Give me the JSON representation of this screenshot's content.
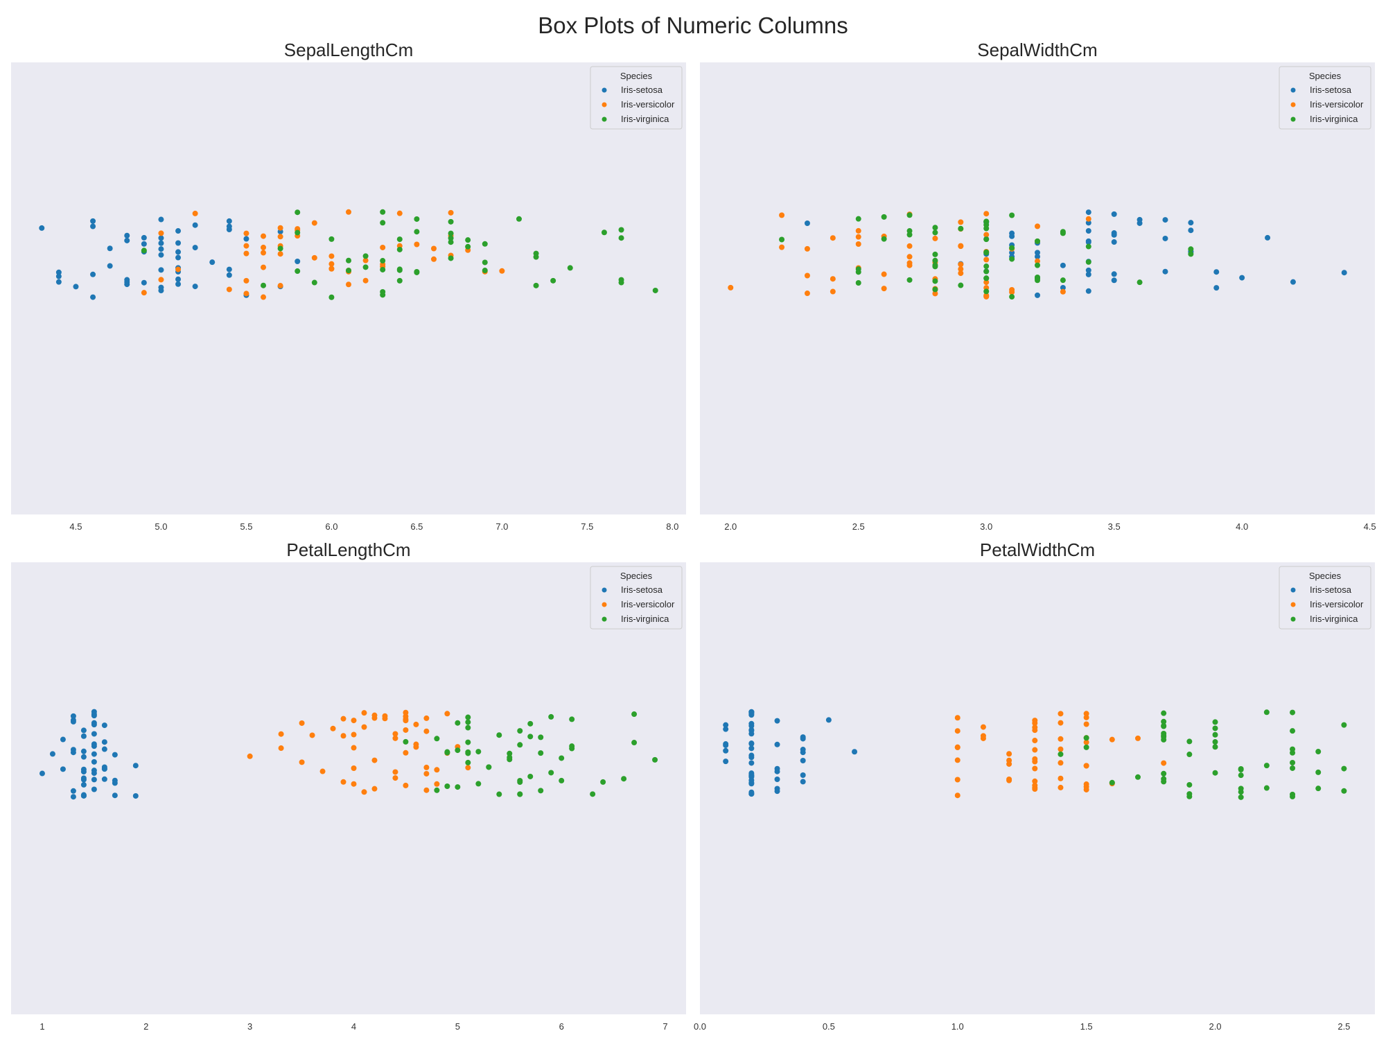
{
  "suptitle": "Box Plots of Numeric Columns",
  "colors": {
    "Iris-setosa": "#1f77b4",
    "Iris-versicolor": "#ff7f0e",
    "Iris-virginica": "#2ca02c",
    "axes_bg": "#eaeaf2"
  },
  "legend": {
    "title": "Species",
    "entries": [
      "Iris-setosa",
      "Iris-versicolor",
      "Iris-virginica"
    ],
    "placement": "top-right"
  },
  "chart_data": [
    {
      "type": "scatter",
      "title": "SepalLengthCm",
      "xlabel": "",
      "ylabel": "",
      "xlim": [
        4.12,
        8.08
      ],
      "xticks": [
        "4.5",
        "5.0",
        "5.5",
        "6.0",
        "6.5",
        "7.0",
        "7.5",
        "8.0"
      ],
      "grid": false,
      "series": [
        {
          "name": "Iris-setosa",
          "values": [
            5.1,
            4.9,
            4.7,
            4.6,
            5.0,
            5.4,
            4.6,
            5.0,
            4.4,
            4.9,
            5.4,
            4.8,
            4.8,
            4.3,
            5.8,
            5.7,
            5.4,
            5.1,
            5.7,
            5.1,
            5.4,
            5.1,
            4.6,
            5.1,
            4.8,
            5.0,
            5.0,
            5.2,
            5.2,
            4.7,
            4.8,
            5.4,
            5.2,
            5.5,
            4.9,
            5.0,
            5.5,
            4.9,
            4.4,
            5.1,
            5.0,
            4.5,
            4.4,
            5.0,
            5.1,
            4.8,
            5.1,
            4.6,
            5.3,
            5.0
          ]
        },
        {
          "name": "Iris-versicolor",
          "values": [
            7.0,
            6.4,
            6.9,
            5.5,
            6.5,
            5.7,
            6.3,
            4.9,
            6.6,
            5.2,
            5.0,
            5.9,
            6.0,
            6.1,
            5.6,
            6.7,
            5.6,
            5.8,
            6.2,
            5.6,
            5.9,
            6.1,
            6.3,
            6.1,
            6.4,
            6.6,
            6.8,
            6.7,
            6.0,
            5.7,
            5.5,
            5.5,
            5.8,
            6.0,
            5.4,
            6.0,
            6.7,
            6.3,
            5.6,
            5.5,
            5.5,
            6.1,
            5.8,
            5.0,
            5.6,
            5.7,
            5.7,
            6.2,
            5.1,
            5.7
          ]
        },
        {
          "name": "Iris-virginica",
          "values": [
            6.3,
            5.8,
            7.1,
            6.3,
            6.5,
            7.6,
            4.9,
            7.3,
            6.7,
            7.2,
            6.5,
            6.4,
            6.8,
            5.7,
            5.8,
            6.4,
            6.5,
            7.7,
            7.7,
            6.0,
            6.9,
            5.6,
            7.7,
            6.3,
            6.7,
            7.2,
            6.2,
            6.1,
            6.4,
            7.2,
            7.4,
            7.9,
            6.4,
            6.3,
            6.1,
            7.7,
            6.3,
            6.4,
            6.0,
            6.9,
            6.7,
            6.9,
            5.8,
            6.8,
            6.7,
            6.7,
            6.3,
            6.5,
            6.2,
            5.9
          ]
        }
      ]
    },
    {
      "type": "scatter",
      "title": "SepalWidthCm",
      "xlabel": "",
      "ylabel": "",
      "xlim": [
        1.88,
        4.52
      ],
      "xticks": [
        "2.0",
        "2.5",
        "3.0",
        "3.5",
        "4.0",
        "4.5"
      ],
      "grid": false,
      "series": [
        {
          "name": "Iris-setosa",
          "values": [
            3.5,
            3.0,
            3.2,
            3.1,
            3.6,
            3.9,
            3.4,
            3.4,
            2.9,
            3.1,
            3.7,
            3.4,
            3.0,
            3.0,
            4.0,
            4.4,
            3.9,
            3.5,
            3.8,
            3.8,
            3.4,
            3.7,
            3.6,
            3.3,
            3.4,
            3.0,
            3.4,
            3.5,
            3.4,
            3.2,
            3.1,
            3.4,
            4.1,
            4.2,
            3.1,
            3.2,
            3.5,
            3.1,
            3.0,
            3.4,
            3.5,
            2.3,
            3.2,
            3.5,
            3.8,
            3.0,
            3.8,
            3.2,
            3.7,
            3.3
          ]
        },
        {
          "name": "Iris-versicolor",
          "values": [
            3.2,
            3.2,
            3.1,
            2.3,
            2.8,
            2.8,
            3.3,
            2.4,
            2.9,
            2.7,
            2.0,
            3.0,
            2.2,
            2.9,
            2.9,
            3.1,
            3.0,
            2.7,
            2.2,
            2.5,
            3.2,
            2.8,
            2.5,
            2.8,
            2.9,
            3.0,
            2.8,
            3.0,
            2.9,
            2.6,
            2.4,
            2.4,
            2.7,
            2.7,
            3.0,
            3.4,
            3.1,
            2.3,
            3.0,
            2.5,
            2.6,
            3.0,
            2.6,
            2.3,
            2.7,
            3.0,
            2.9,
            2.9,
            2.5,
            2.8
          ]
        },
        {
          "name": "Iris-virginica",
          "values": [
            3.3,
            2.7,
            3.0,
            2.9,
            3.0,
            3.0,
            2.5,
            2.9,
            2.5,
            3.6,
            3.2,
            2.7,
            3.0,
            2.5,
            2.8,
            3.2,
            3.0,
            3.8,
            2.6,
            2.2,
            3.2,
            2.8,
            2.8,
            2.7,
            3.3,
            3.2,
            2.8,
            3.0,
            2.8,
            3.0,
            2.8,
            3.8,
            2.8,
            2.8,
            2.6,
            3.0,
            3.4,
            3.1,
            3.0,
            3.1,
            3.1,
            3.1,
            2.7,
            3.2,
            3.3,
            3.0,
            2.5,
            3.0,
            3.4,
            3.0
          ]
        }
      ]
    },
    {
      "type": "scatter",
      "title": "PetalLengthCm",
      "xlabel": "",
      "ylabel": "",
      "xlim": [
        0.7,
        7.2
      ],
      "xticks": [
        "1",
        "2",
        "3",
        "4",
        "5",
        "6",
        "7"
      ],
      "grid": false,
      "series": [
        {
          "name": "Iris-setosa",
          "values": [
            1.4,
            1.4,
            1.3,
            1.5,
            1.4,
            1.7,
            1.4,
            1.5,
            1.4,
            1.5,
            1.5,
            1.6,
            1.4,
            1.1,
            1.2,
            1.5,
            1.3,
            1.4,
            1.7,
            1.5,
            1.7,
            1.5,
            1.0,
            1.7,
            1.9,
            1.6,
            1.6,
            1.5,
            1.4,
            1.6,
            1.6,
            1.5,
            1.5,
            1.4,
            1.5,
            1.2,
            1.3,
            1.5,
            1.3,
            1.5,
            1.3,
            1.3,
            1.3,
            1.6,
            1.9,
            1.4,
            1.6,
            1.4,
            1.5,
            1.4
          ]
        },
        {
          "name": "Iris-versicolor",
          "values": [
            4.7,
            4.5,
            4.9,
            4.0,
            4.6,
            4.5,
            4.7,
            3.3,
            4.6,
            3.9,
            3.5,
            4.2,
            4.0,
            4.7,
            3.6,
            4.4,
            4.5,
            4.1,
            4.5,
            3.9,
            4.8,
            4.0,
            4.9,
            4.7,
            4.3,
            4.4,
            4.8,
            5.0,
            4.5,
            3.5,
            3.8,
            3.7,
            3.9,
            5.1,
            4.5,
            4.5,
            4.7,
            4.4,
            4.1,
            4.0,
            4.4,
            4.6,
            4.0,
            3.3,
            4.2,
            4.2,
            4.2,
            4.3,
            3.0,
            4.1
          ]
        },
        {
          "name": "Iris-virginica",
          "values": [
            6.0,
            5.1,
            5.9,
            5.6,
            5.8,
            6.6,
            4.5,
            6.3,
            5.8,
            6.1,
            5.1,
            5.3,
            5.5,
            5.0,
            5.1,
            5.3,
            5.5,
            6.7,
            6.9,
            5.0,
            5.7,
            4.9,
            6.7,
            4.9,
            5.7,
            6.0,
            4.8,
            4.9,
            5.6,
            5.8,
            6.1,
            6.4,
            5.6,
            5.1,
            5.6,
            6.1,
            5.6,
            5.5,
            4.8,
            5.4,
            5.6,
            5.1,
            5.1,
            5.9,
            5.7,
            5.2,
            5.0,
            5.2,
            5.4,
            5.1
          ]
        }
      ]
    },
    {
      "type": "scatter",
      "title": "PetalWidthCm",
      "xlabel": "",
      "ylabel": "",
      "xlim": [
        0.0,
        2.62
      ],
      "xticks": [
        "0.0",
        "0.5",
        "1.0",
        "1.5",
        "2.0",
        "2.5"
      ],
      "grid": false,
      "series": [
        {
          "name": "Iris-setosa",
          "values": [
            0.2,
            0.2,
            0.2,
            0.2,
            0.2,
            0.4,
            0.3,
            0.2,
            0.2,
            0.1,
            0.2,
            0.2,
            0.1,
            0.1,
            0.2,
            0.4,
            0.4,
            0.3,
            0.3,
            0.3,
            0.2,
            0.4,
            0.2,
            0.5,
            0.2,
            0.2,
            0.4,
            0.2,
            0.2,
            0.2,
            0.2,
            0.4,
            0.1,
            0.2,
            0.1,
            0.2,
            0.2,
            0.1,
            0.2,
            0.2,
            0.3,
            0.3,
            0.2,
            0.6,
            0.4,
            0.3,
            0.2,
            0.2,
            0.2,
            0.2
          ]
        },
        {
          "name": "Iris-versicolor",
          "values": [
            1.4,
            1.5,
            1.5,
            1.3,
            1.5,
            1.3,
            1.6,
            1.0,
            1.3,
            1.4,
            1.0,
            1.5,
            1.0,
            1.4,
            1.3,
            1.4,
            1.5,
            1.0,
            1.5,
            1.1,
            1.8,
            1.3,
            1.5,
            1.2,
            1.3,
            1.4,
            1.4,
            1.7,
            1.5,
            1.0,
            1.1,
            1.0,
            1.2,
            1.6,
            1.5,
            1.6,
            1.5,
            1.3,
            1.3,
            1.3,
            1.2,
            1.4,
            1.2,
            1.0,
            1.3,
            1.2,
            1.3,
            1.3,
            1.1,
            1.3
          ]
        },
        {
          "name": "Iris-virginica",
          "values": [
            2.5,
            1.9,
            2.1,
            1.8,
            2.2,
            2.1,
            1.7,
            1.8,
            1.8,
            2.5,
            2.0,
            1.9,
            2.1,
            2.0,
            2.4,
            2.3,
            1.8,
            2.2,
            2.3,
            1.5,
            2.3,
            2.0,
            2.0,
            1.8,
            2.1,
            1.8,
            1.8,
            1.8,
            2.1,
            1.6,
            1.9,
            2.0,
            2.2,
            1.5,
            1.4,
            2.3,
            2.4,
            1.8,
            1.8,
            2.1,
            2.4,
            2.3,
            1.9,
            2.3,
            2.5,
            2.3,
            1.9,
            2.0,
            2.3,
            1.8
          ]
        }
      ]
    }
  ]
}
